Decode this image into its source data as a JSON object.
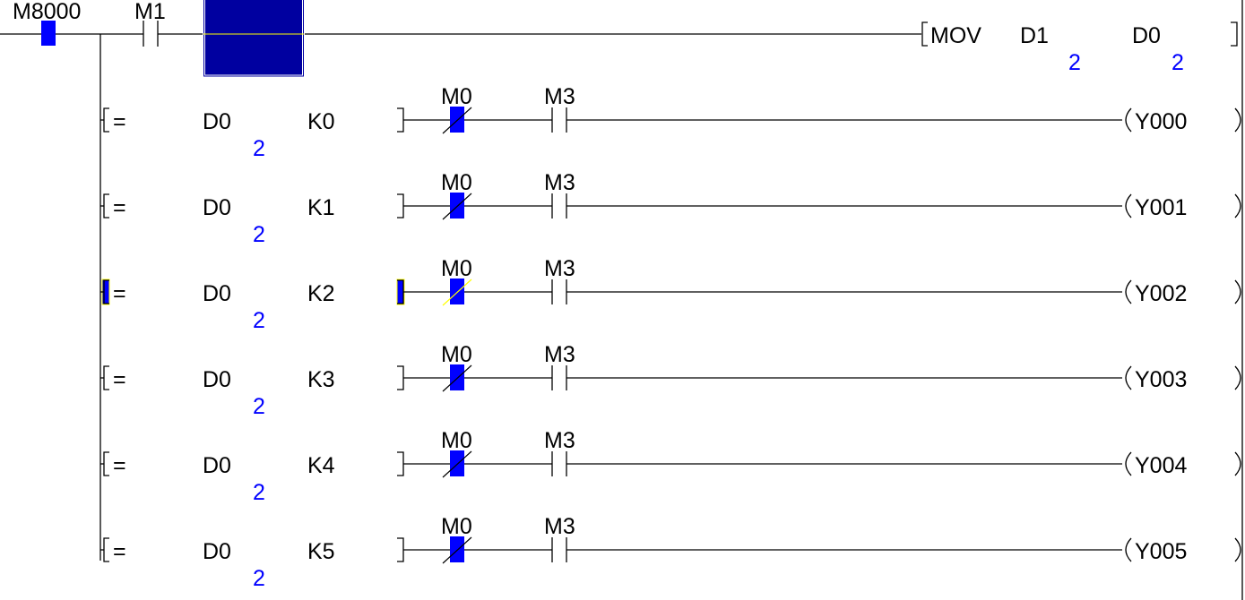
{
  "colors": {
    "active_contact": "#0000ff",
    "selected_block": "#0000a0",
    "cursor_line": "#ffff00",
    "monitor_value": "#0000ff"
  },
  "main_rung": {
    "contact1": {
      "device": "M8000",
      "type": "normally-open",
      "on": true
    },
    "contact2": {
      "device": "M1",
      "type": "normally-open",
      "on": false
    },
    "instruction": {
      "mnemonic": "MOV",
      "source": "D1",
      "source_value": "2",
      "dest": "D0",
      "dest_value": "2"
    }
  },
  "rows": [
    {
      "op": "=",
      "operand1": "D0",
      "operand1_value": "2",
      "operand2": "K0",
      "contact1": "M0",
      "contact1_type": "normally-closed",
      "contact1_on": true,
      "contact2": "M3",
      "contact2_type": "normally-open",
      "coil": "Y000",
      "compare_active": false
    },
    {
      "op": "=",
      "operand1": "D0",
      "operand1_value": "2",
      "operand2": "K1",
      "contact1": "M0",
      "contact1_type": "normally-closed",
      "contact1_on": true,
      "contact2": "M3",
      "contact2_type": "normally-open",
      "coil": "Y001",
      "compare_active": false
    },
    {
      "op": "=",
      "operand1": "D0",
      "operand1_value": "2",
      "operand2": "K2",
      "contact1": "M0",
      "contact1_type": "normally-closed",
      "contact1_on": true,
      "contact2": "M3",
      "contact2_type": "normally-open",
      "coil": "Y002",
      "compare_active": true
    },
    {
      "op": "=",
      "operand1": "D0",
      "operand1_value": "2",
      "operand2": "K3",
      "contact1": "M0",
      "contact1_type": "normally-closed",
      "contact1_on": true,
      "contact2": "M3",
      "contact2_type": "normally-open",
      "coil": "Y003",
      "compare_active": false
    },
    {
      "op": "=",
      "operand1": "D0",
      "operand1_value": "2",
      "operand2": "K4",
      "contact1": "M0",
      "contact1_type": "normally-closed",
      "contact1_on": true,
      "contact2": "M3",
      "contact2_type": "normally-open",
      "coil": "Y004",
      "compare_active": false
    },
    {
      "op": "=",
      "operand1": "D0",
      "operand1_value": "2",
      "operand2": "K5",
      "contact1": "M0",
      "contact1_type": "normally-closed",
      "contact1_on": true,
      "contact2": "M3",
      "contact2_type": "normally-open",
      "coil": "Y005",
      "compare_active": false
    }
  ]
}
